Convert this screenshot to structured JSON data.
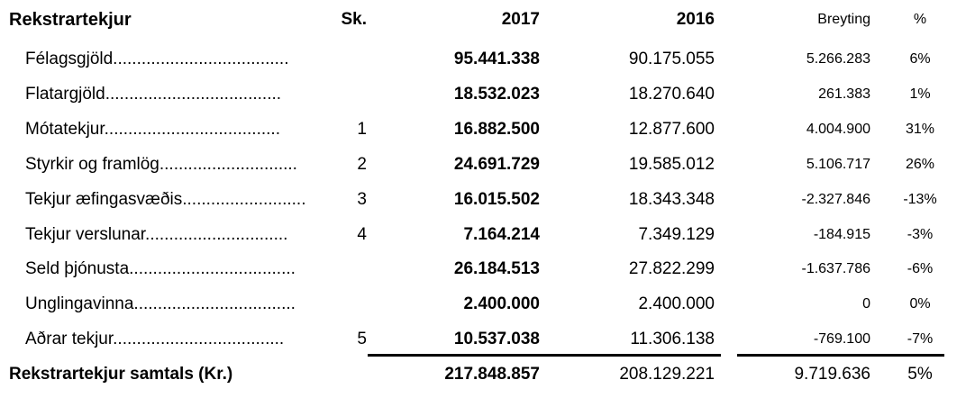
{
  "table": {
    "header": [
      "Rekstrartekjur",
      "Sk.",
      "2017",
      "2016",
      "Breyting",
      "%"
    ],
    "rows": [
      [
        "Félagsgjöld.....................................",
        null,
        "95.441.338",
        "90.175.055",
        "5.266.283",
        "6%"
      ],
      [
        "Flatargjöld.....................................",
        null,
        "18.532.023",
        "18.270.640",
        "261.383",
        "1%"
      ],
      [
        "Mótatekjur.....................................",
        "1",
        "16.882.500",
        "12.877.600",
        "4.004.900",
        "31%"
      ],
      [
        "Styrkir og framlög.............................",
        "2",
        "24.691.729",
        "19.585.012",
        "5.106.717",
        "26%"
      ],
      [
        "Tekjur æfingasvæðis..........................",
        "3",
        "16.015.502",
        "18.343.348",
        "-2.327.846",
        "-13%"
      ],
      [
        "Tekjur verslunar..............................",
        "4",
        "7.164.214",
        "7.349.129",
        "-184.915",
        "-3%"
      ],
      [
        "Seld þjónusta...................................",
        null,
        "26.184.513",
        "27.822.299",
        "-1.637.786",
        "-6%"
      ],
      [
        "Unglingavinna..................................",
        null,
        "2.400.000",
        "2.400.000",
        "0",
        "0%"
      ],
      [
        "Aðrar tekjur....................................",
        "5",
        "10.537.038",
        "11.306.138",
        "-769.100",
        "-7%"
      ]
    ],
    "total": [
      "Rekstrartekjur samtals (Kr.)",
      null,
      "217.848.857",
      "208.129.221",
      "9.719.636",
      "5%"
    ]
  }
}
